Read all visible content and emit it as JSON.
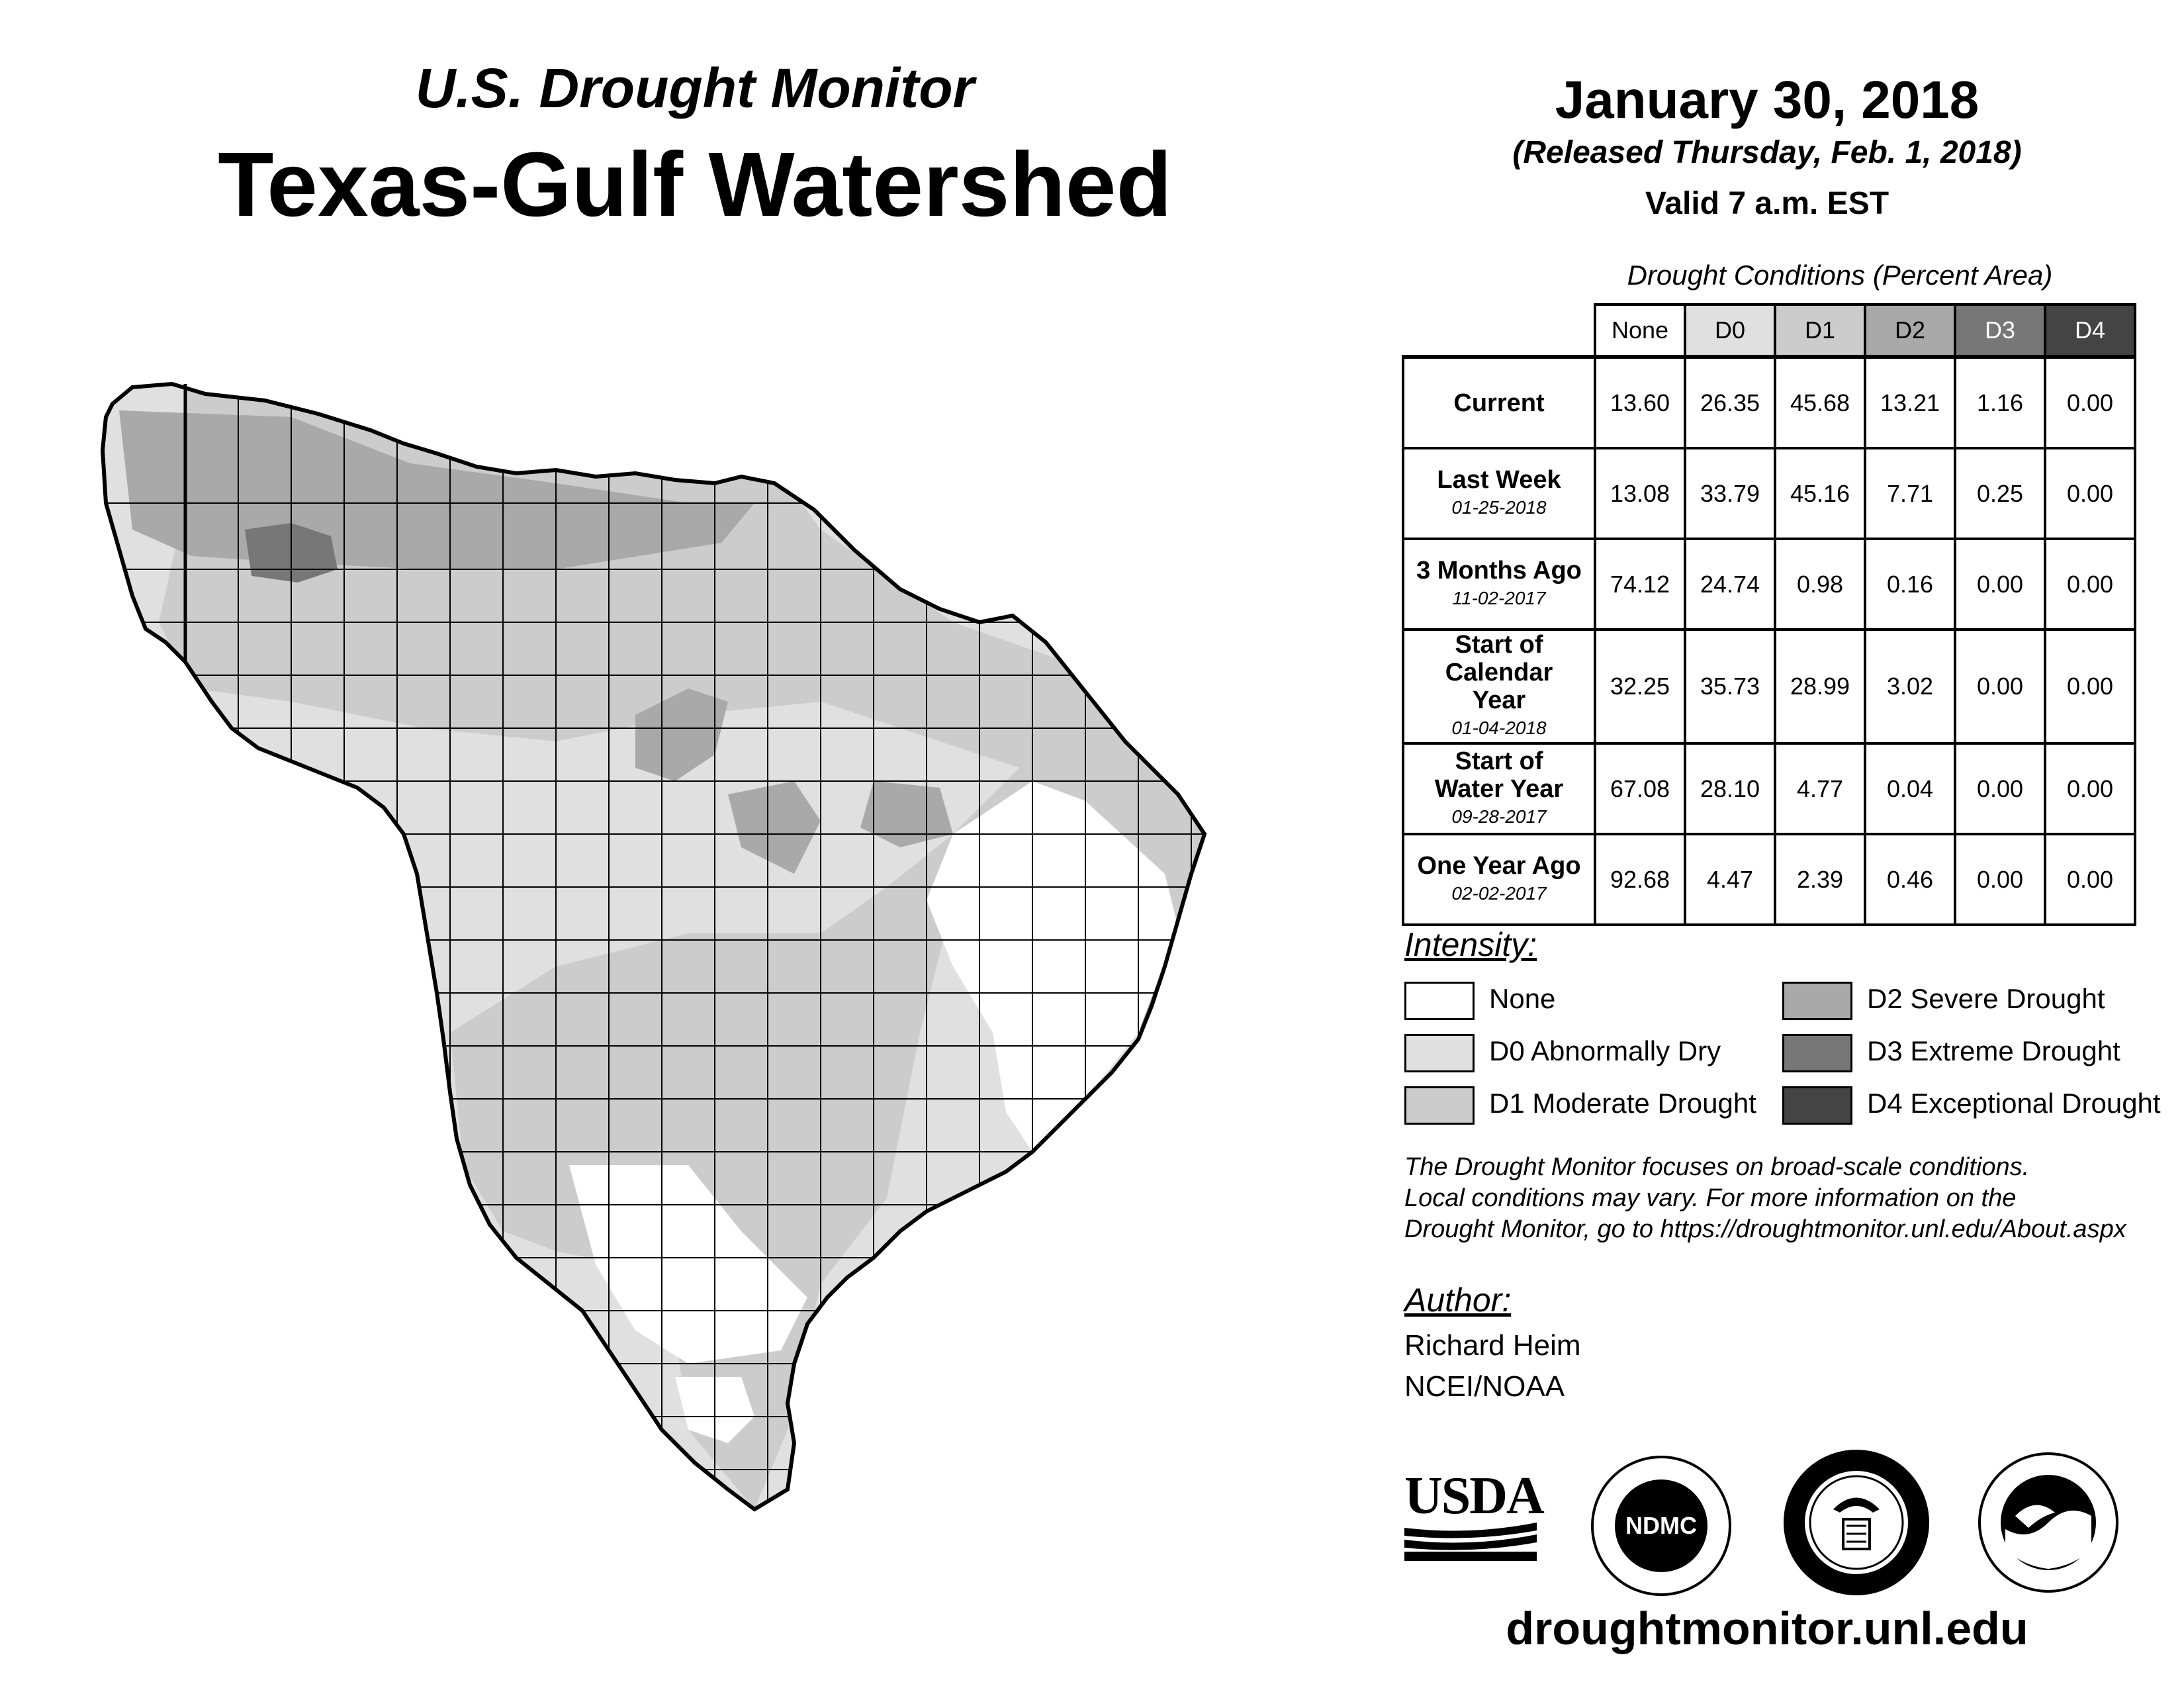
{
  "header": {
    "subtitle": "U.S. Drought Monitor",
    "title": "Texas-Gulf Watershed",
    "date": "January 30, 2018",
    "released": "(Released Thursday, Feb. 1, 2018)",
    "valid": "Valid 7 a.m. EST"
  },
  "table": {
    "title": "Drought Conditions (Percent Area)",
    "columns": [
      "None",
      "D0",
      "D1",
      "D2",
      "D3",
      "D4"
    ],
    "rows": [
      {
        "label": "Current",
        "date": "",
        "values": [
          "13.60",
          "26.35",
          "45.68",
          "13.21",
          "1.16",
          "0.00"
        ]
      },
      {
        "label": "Last Week",
        "date": "01-25-2018",
        "values": [
          "13.08",
          "33.79",
          "45.16",
          "7.71",
          "0.25",
          "0.00"
        ]
      },
      {
        "label": "3 Months Ago",
        "date": "11-02-2017",
        "values": [
          "74.12",
          "24.74",
          "0.98",
          "0.16",
          "0.00",
          "0.00"
        ]
      },
      {
        "label": "Start of Calendar Year",
        "date": "01-04-2018",
        "values": [
          "32.25",
          "35.73",
          "28.99",
          "3.02",
          "0.00",
          "0.00"
        ]
      },
      {
        "label": "Start of Water Year",
        "date": "09-28-2017",
        "values": [
          "67.08",
          "28.10",
          "4.77",
          "0.04",
          "0.00",
          "0.00"
        ]
      },
      {
        "label": "One Year Ago",
        "date": "02-02-2017",
        "values": [
          "92.68",
          "4.47",
          "2.39",
          "0.46",
          "0.00",
          "0.00"
        ]
      }
    ]
  },
  "legend": {
    "title": "Intensity:",
    "items": [
      {
        "label": "None",
        "color": "#ffffff"
      },
      {
        "label": "D0 Abnormally Dry",
        "color": "#e0e0e0"
      },
      {
        "label": "D1 Moderate Drought",
        "color": "#cccccc"
      },
      {
        "label": "D2 Severe Drought",
        "color": "#a9a9a9"
      },
      {
        "label": "D3 Extreme Drought",
        "color": "#777777"
      },
      {
        "label": "D4 Exceptional Drought",
        "color": "#444444"
      }
    ]
  },
  "note": {
    "line1": "The Drought Monitor focuses on broad-scale conditions.",
    "line2": "Local conditions may vary. For more information on the",
    "line3": "Drought Monitor, go to https://droughtmonitor.unl.edu/About.aspx"
  },
  "author": {
    "title": "Author:",
    "name": "Richard Heim",
    "org": "NCEI/NOAA"
  },
  "logos": {
    "usda": "USDA",
    "ndmc": "NDMC"
  },
  "website": "droughtmonitor.unl.edu"
}
